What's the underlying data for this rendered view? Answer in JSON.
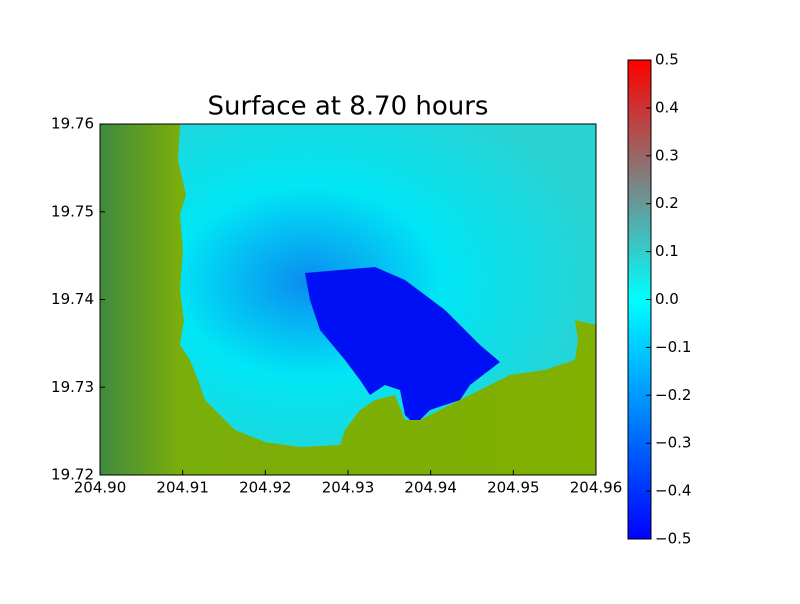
{
  "chart_data": {
    "type": "heatmap",
    "title": "Surface at 8.70 hours",
    "xlim": [
      204.9,
      204.96
    ],
    "xticks": [
      {
        "value": 204.9,
        "label": "204.90"
      },
      204.91,
      204.92,
      204.93,
      204.94,
      204.95,
      204.96
    ],
    "ylim": [
      19.72,
      19.76
    ],
    "yticks": [
      19.72,
      19.73,
      19.74,
      19.75,
      19.76
    ],
    "colorbar": {
      "lim": [
        -0.5,
        0.5
      ],
      "ticks": [
        {
          "value": -0.5,
          "label": "−0.5"
        },
        {
          "value": -0.4,
          "label": "−0.4"
        },
        {
          "value": -0.3,
          "label": "−0.3"
        },
        {
          "value": -0.2,
          "label": "−0.2"
        },
        {
          "value": -0.1,
          "label": "−0.1"
        },
        {
          "value": 0,
          "label": "0.0"
        },
        0.1,
        0.2,
        0.3,
        0.4,
        0.5
      ],
      "colors": [
        "#0000ff",
        "#00ffff",
        "#808080",
        "#ff0000"
      ]
    }
  }
}
